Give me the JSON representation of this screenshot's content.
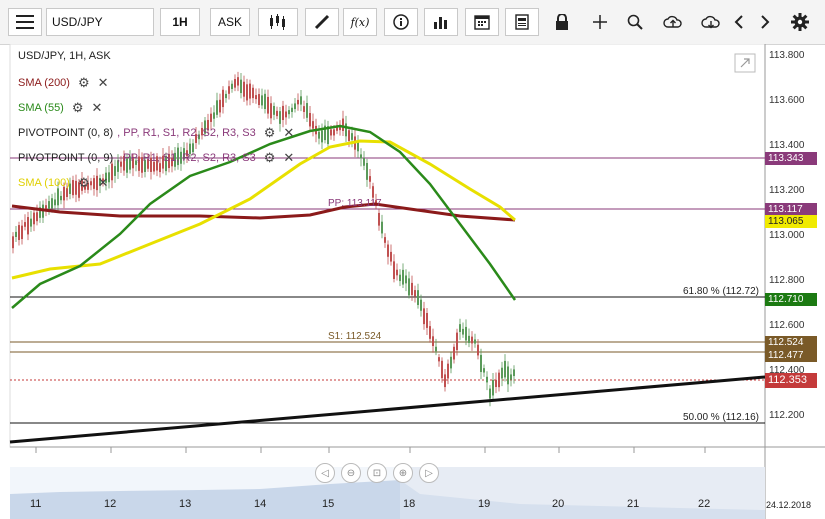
{
  "toolbar": {
    "symbol": "USD/JPY",
    "timeframe": "1H",
    "price_type": "ASK",
    "fx_label": "f(x)"
  },
  "chart_title": "USD/JPY, 1H, ASK",
  "indicators": [
    {
      "label": "SMA (200)",
      "color": "#8b1a1a"
    },
    {
      "label": "SMA (55)",
      "color": "#2a8a1a"
    },
    {
      "label": "PIVOTPOINT (0, 8)",
      "color": "#222222"
    },
    {
      "label": "PIVOTPOINT (0, 9)",
      "color": "#222222"
    },
    {
      "label": "SMA (100)",
      "color": "#e8e000"
    }
  ],
  "pivot_points_text": ", PP, R1, S1, R2, S2, R3, S3",
  "y_axis": [
    "113.800",
    "113.600",
    "113.400",
    "113.200",
    "113.000",
    "112.800",
    "112.600",
    "112.400",
    "112.200"
  ],
  "x_axis": [
    "11",
    "12",
    "13",
    "14",
    "15",
    "18",
    "19",
    "20",
    "21",
    "22"
  ],
  "x_date": "24.12.2018",
  "price_tags": [
    {
      "label": "113.343",
      "bg": "#8a3a7a"
    },
    {
      "label": "113.117",
      "bg": "#8a3a7a"
    },
    {
      "label": "113.065",
      "bg": "#f0ea00"
    },
    {
      "label": "112.710",
      "bg": "#1c7a12"
    },
    {
      "label": "112.524",
      "bg": "#7a5a28"
    },
    {
      "label": "112.477",
      "bg": "#7a5a28"
    },
    {
      "label": "112.353",
      "bg": "#c43a3a"
    }
  ],
  "line_labels": {
    "fib618": "61.80 % (112.72)",
    "fib50": "50.00 % (112.16)",
    "pp": "PP: 113.117",
    "s1": "S1: 112.524"
  }
}
